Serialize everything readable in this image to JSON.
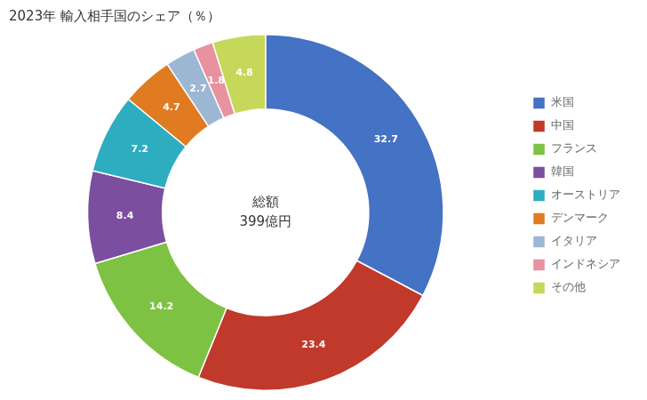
{
  "chart_data": {
    "type": "doughnut",
    "title": "2023年 輸入相手国のシェア（％）",
    "annotations": [
      "総額",
      "399億円"
    ],
    "categories": [
      "米国",
      "中国",
      "フランス",
      "韓国",
      "オーストリア",
      "デンマーク",
      "イタリア",
      "インドネシア",
      "その他"
    ],
    "values": [
      32.7,
      23.4,
      14.2,
      8.4,
      7.2,
      4.7,
      2.7,
      1.8,
      4.8
    ],
    "colors": [
      "#4472C4",
      "#C0392B",
      "#7DC242",
      "#7B4EA0",
      "#2EADC1",
      "#E07B21",
      "#9BB7D4",
      "#E8919F",
      "#C6D85A"
    ],
    "data_labels": true,
    "legend": "right"
  }
}
